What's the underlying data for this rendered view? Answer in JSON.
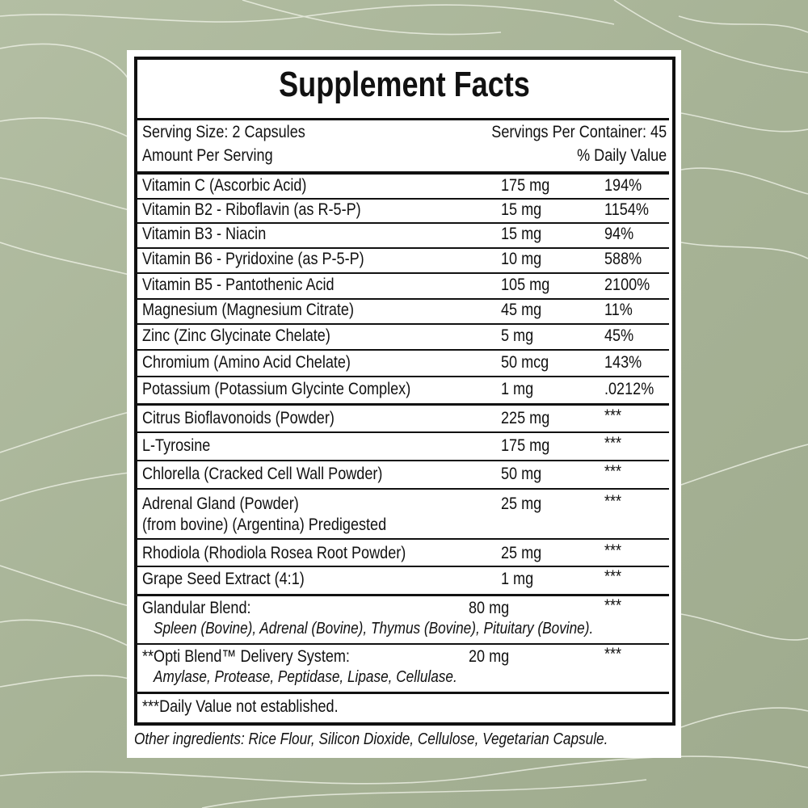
{
  "title": "Supplement Facts",
  "serving_size": "Serving Size: 2 Capsules",
  "servings_per_container": "Servings Per Container: 45",
  "amount_per_serving": "Amount Per Serving",
  "daily_value_header": "% Daily Value",
  "nutrients": [
    {
      "name": "Vitamin C (Ascorbic Acid)",
      "amount": "175 mg",
      "dv": "194%"
    },
    {
      "name": "Vitamin B2 - Riboflavin (as R-5-P)",
      "amount": "15 mg",
      "dv": "1154%"
    },
    {
      "name": "Vitamin B3 - Niacin",
      "amount": "15 mg",
      "dv": "94%"
    },
    {
      "name": "Vitamin B6 - Pyridoxine (as P-5-P)",
      "amount": "10 mg",
      "dv": "588%"
    },
    {
      "name": "Vitamin B5 - Pantothenic Acid",
      "amount": "105 mg",
      "dv": "2100%"
    },
    {
      "name": "Magnesium (Magnesium Citrate)",
      "amount": "45 mg",
      "dv": "11%"
    },
    {
      "name": "Zinc (Zinc Glycinate Chelate)",
      "amount": "5 mg",
      "dv": "45%"
    },
    {
      "name": "Chromium (Amino Acid Chelate)",
      "amount": "50 mcg",
      "dv": "143%"
    },
    {
      "name": "Potassium (Potassium Glycinte Complex)",
      "amount": "1 mg",
      "dv": ".0212%"
    }
  ],
  "other_actives": [
    {
      "name": "Citrus Bioflavonoids (Powder)",
      "amount": "225 mg",
      "dv": "***"
    },
    {
      "name": "L-Tyrosine",
      "amount": "175 mg",
      "dv": "***"
    },
    {
      "name": "Chlorella (Cracked Cell Wall Powder)",
      "amount": "50 mg",
      "dv": "***"
    },
    {
      "name": "Adrenal Gland (Powder)",
      "name_line2": "(from bovine) (Argentina) Predigested",
      "amount": "25 mg",
      "dv": "***"
    },
    {
      "name": "Rhodiola (Rhodiola Rosea Root Powder)",
      "amount": "25 mg",
      "dv": "***"
    },
    {
      "name": "Grape Seed Extract (4:1)",
      "amount": "1 mg",
      "dv": "***"
    }
  ],
  "blends": [
    {
      "name": "Glandular Blend:",
      "amount": "80 mg",
      "dv": "***",
      "contents": "Spleen (Bovine), Adrenal (Bovine), Thymus (Bovine), Pituitary (Bovine)."
    },
    {
      "name": "**Opti Blend™ Delivery System:",
      "amount": "20 mg",
      "dv": "***",
      "contents": "Amylase, Protease, Peptidase, Lipase, Cellulase."
    }
  ],
  "footnote": "***Daily Value not established.",
  "other_ingredients": "Other ingredients: Rice Flour, Silicon Dioxide, Cellulose, Vegetarian Capsule."
}
